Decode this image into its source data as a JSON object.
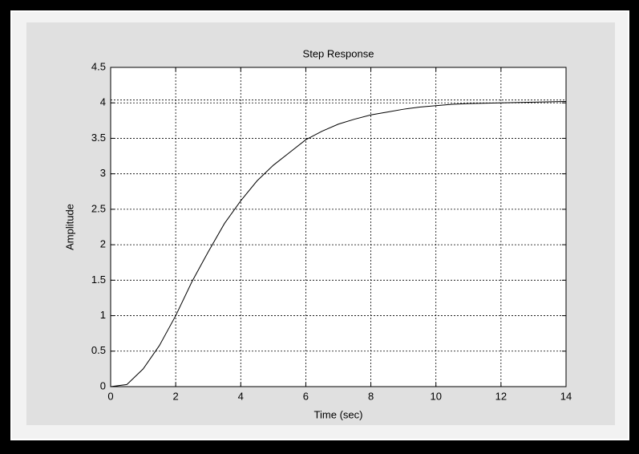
{
  "chart_data": {
    "type": "line",
    "title": "Step Response",
    "xlabel": "Time (sec)",
    "ylabel": "Amplitude",
    "x": [
      0,
      0.5,
      1,
      1.5,
      2,
      2.5,
      3,
      3.5,
      4,
      4.5,
      5,
      5.5,
      6,
      6.5,
      7,
      7.5,
      8,
      8.5,
      9,
      9.5,
      10,
      10.5,
      11,
      12,
      13,
      14
    ],
    "series": [
      {
        "color": "#000000",
        "values": [
          0,
          0.03,
          0.25,
          0.58,
          1.0,
          1.48,
          1.9,
          2.3,
          2.62,
          2.9,
          3.12,
          3.3,
          3.48,
          3.6,
          3.7,
          3.77,
          3.83,
          3.87,
          3.91,
          3.94,
          3.96,
          3.98,
          3.99,
          4.0,
          4.01,
          4.02
        ]
      }
    ],
    "reference_line": 4.04,
    "xlim": [
      0,
      14
    ],
    "xticks": [
      0,
      2,
      4,
      6,
      8,
      10,
      12,
      14
    ],
    "ylim": [
      0,
      4.5
    ],
    "yticks": [
      0,
      0.5,
      1,
      1.5,
      2,
      2.5,
      3,
      3.5,
      4,
      4.5
    ],
    "grid": true
  }
}
